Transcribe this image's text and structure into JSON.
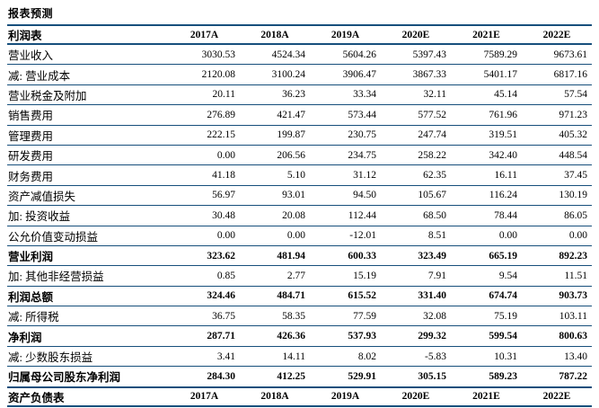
{
  "page": {
    "title": "报表预测"
  },
  "income_statement": {
    "section_label": "利润表",
    "years": [
      "2017A",
      "2018A",
      "2019A",
      "2020E",
      "2021E",
      "2022E"
    ],
    "rows": [
      {
        "label": "营业收入",
        "bold": false,
        "values": [
          "3030.53",
          "4524.34",
          "5604.26",
          "5397.43",
          "7589.29",
          "9673.61"
        ]
      },
      {
        "label": "减: 营业成本",
        "bold": false,
        "values": [
          "2120.08",
          "3100.24",
          "3906.47",
          "3867.33",
          "5401.17",
          "6817.16"
        ]
      },
      {
        "label": "营业税金及附加",
        "bold": false,
        "values": [
          "20.11",
          "36.23",
          "33.34",
          "32.11",
          "45.14",
          "57.54"
        ]
      },
      {
        "label": "销售费用",
        "bold": false,
        "values": [
          "276.89",
          "421.47",
          "573.44",
          "577.52",
          "761.96",
          "971.23"
        ]
      },
      {
        "label": "管理费用",
        "bold": false,
        "values": [
          "222.15",
          "199.87",
          "230.75",
          "247.74",
          "319.51",
          "405.32"
        ]
      },
      {
        "label": "研发费用",
        "bold": false,
        "values": [
          "0.00",
          "206.56",
          "234.75",
          "258.22",
          "342.40",
          "448.54"
        ]
      },
      {
        "label": "财务费用",
        "bold": false,
        "values": [
          "41.18",
          "5.10",
          "31.12",
          "62.35",
          "16.11",
          "37.45"
        ]
      },
      {
        "label": "资产减值损失",
        "bold": false,
        "values": [
          "56.97",
          "93.01",
          "94.50",
          "105.67",
          "116.24",
          "130.19"
        ]
      },
      {
        "label": "加: 投资收益",
        "bold": false,
        "values": [
          "30.48",
          "20.08",
          "112.44",
          "68.50",
          "78.44",
          "86.05"
        ]
      },
      {
        "label": "公允价值变动损益",
        "bold": false,
        "values": [
          "0.00",
          "0.00",
          "-12.01",
          "8.51",
          "0.00",
          "0.00"
        ]
      },
      {
        "label": "营业利润",
        "bold": true,
        "values": [
          "323.62",
          "481.94",
          "600.33",
          "323.49",
          "665.19",
          "892.23"
        ]
      },
      {
        "label": "加: 其他非经营损益",
        "bold": false,
        "values": [
          "0.85",
          "2.77",
          "15.19",
          "7.91",
          "9.54",
          "11.51"
        ]
      },
      {
        "label": "利润总额",
        "bold": true,
        "values": [
          "324.46",
          "484.71",
          "615.52",
          "331.40",
          "674.74",
          "903.73"
        ]
      },
      {
        "label": "减: 所得税",
        "bold": false,
        "values": [
          "36.75",
          "58.35",
          "77.59",
          "32.08",
          "75.19",
          "103.11"
        ]
      },
      {
        "label": "净利润",
        "bold": true,
        "values": [
          "287.71",
          "426.36",
          "537.93",
          "299.32",
          "599.54",
          "800.63"
        ]
      },
      {
        "label": "减: 少数股东损益",
        "bold": false,
        "values": [
          "3.41",
          "14.11",
          "8.02",
          "-5.83",
          "10.31",
          "13.40"
        ]
      },
      {
        "label": "归属母公司股东净利润",
        "bold": true,
        "values": [
          "284.30",
          "412.25",
          "529.91",
          "305.15",
          "589.23",
          "787.22"
        ]
      }
    ]
  },
  "balance_sheet": {
    "section_label": "资产负债表",
    "years": [
      "2017A",
      "2018A",
      "2019A",
      "2020E",
      "2021E",
      "2022E"
    ]
  }
}
